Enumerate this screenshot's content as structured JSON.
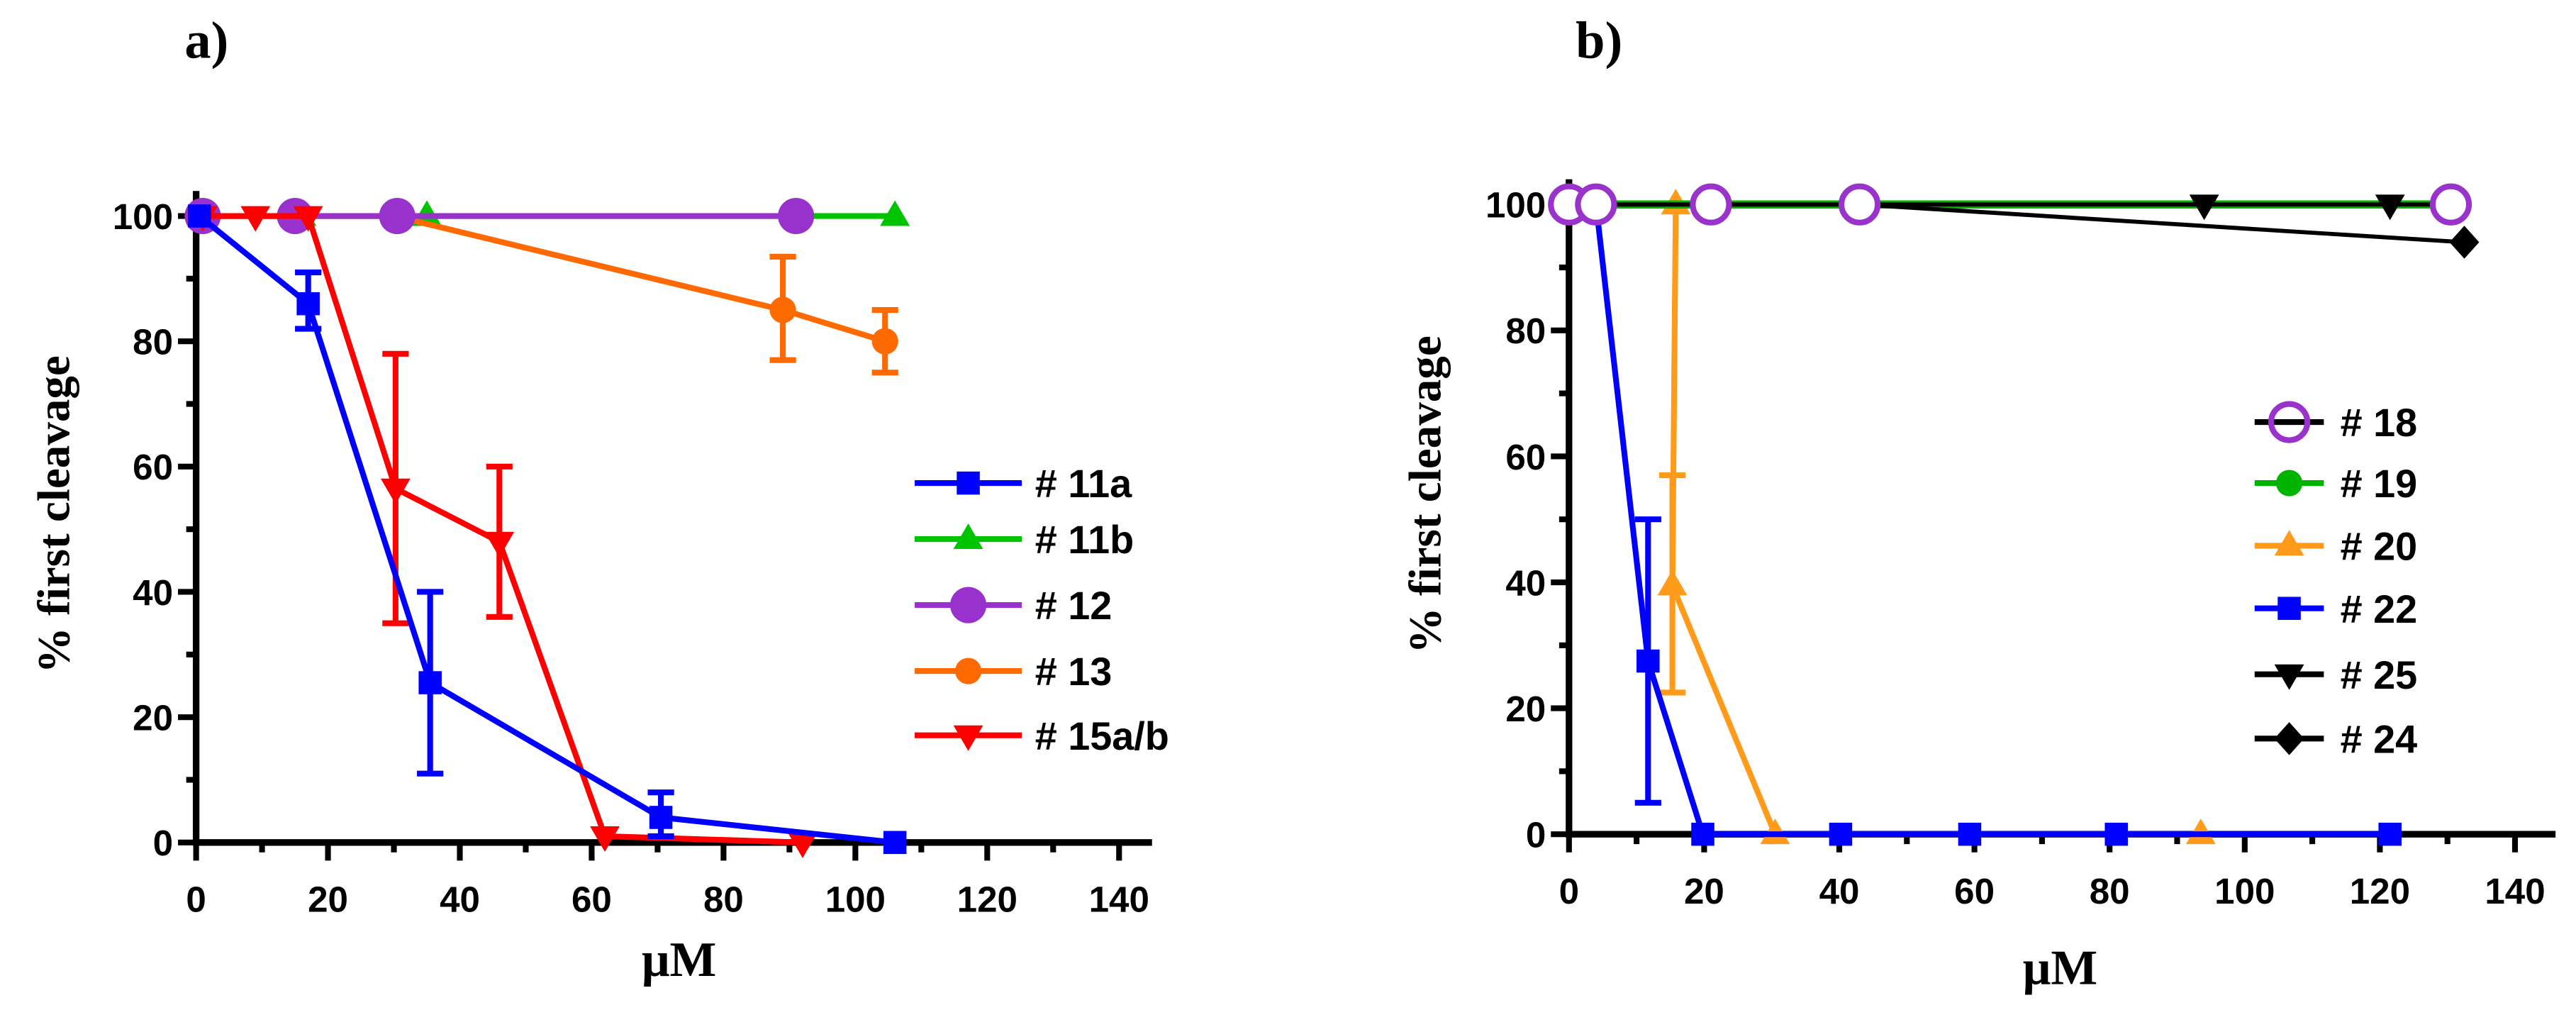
{
  "chart_data": [
    {
      "type": "line",
      "panel_label": "a)",
      "xlabel": "μM",
      "ylabel": "% first cleavage",
      "xlim": [
        0,
        145
      ],
      "ylim": [
        0,
        104
      ],
      "xticks": [
        0,
        20,
        40,
        60,
        80,
        100,
        120,
        140
      ],
      "yticks": [
        0,
        20,
        40,
        60,
        80,
        100
      ],
      "legend_position": "right",
      "series": [
        {
          "name": "# 11a",
          "color": "#0000ff",
          "marker": "square",
          "x": [
            0.5,
            17,
            35.5,
            70.5,
            106
          ],
          "y": [
            100,
            86,
            25.5,
            4,
            0
          ],
          "error_bars": [
            {
              "x": 17,
              "low": 82,
              "high": 91
            },
            {
              "x": 35.5,
              "low": 11,
              "high": 40
            },
            {
              "x": 70.5,
              "low": 1,
              "high": 8
            }
          ]
        },
        {
          "name": "# 11b",
          "color": "#00c400",
          "marker": "triangle-up",
          "x": [
            1,
            16,
            35,
            106
          ],
          "y": [
            100,
            100,
            100,
            100
          ]
        },
        {
          "name": "# 12",
          "color": "#9932cc",
          "marker": "circle-large",
          "x": [
            1,
            15,
            30.5,
            91
          ],
          "y": [
            100,
            100,
            100,
            100
          ]
        },
        {
          "name": "# 13",
          "color": "#ff6a00",
          "marker": "circle",
          "x": [
            1,
            15,
            30,
            89,
            104.5
          ],
          "y": [
            100,
            100,
            100,
            85,
            80
          ],
          "error_bars": [
            {
              "x": 89,
              "low": 77,
              "high": 93.5
            },
            {
              "x": 104.5,
              "low": 75,
              "high": 85
            }
          ]
        },
        {
          "name": "# 15a/b",
          "color": "#ff0000",
          "marker": "triangle-down",
          "x": [
            1,
            9,
            17,
            30.25,
            46,
            62,
            92
          ],
          "y": [
            100,
            100,
            100,
            56.5,
            48,
            1,
            0
          ],
          "error_bars": [
            {
              "x": 30.25,
              "low": 35,
              "high": 78
            },
            {
              "x": 46,
              "low": 36,
              "high": 60
            }
          ]
        }
      ]
    },
    {
      "type": "line",
      "panel_label": "b)",
      "xlabel": "μM",
      "ylabel": "% first cleavage",
      "xlim": [
        0,
        146
      ],
      "ylim": [
        0,
        104
      ],
      "xticks": [
        0,
        20,
        40,
        60,
        80,
        100,
        120,
        140
      ],
      "yticks": [
        0,
        20,
        40,
        60,
        80,
        100
      ],
      "legend_position": "right",
      "series": [
        {
          "name": "# 18",
          "color": "#9933cc",
          "line_color": "#000000",
          "marker": "circle-open",
          "x": [
            0,
            4,
            21,
            43,
            130.5
          ],
          "y": [
            100,
            100,
            100,
            100,
            100
          ]
        },
        {
          "name": "# 19",
          "color": "#00b400",
          "marker": "circle",
          "x": [
            0,
            4,
            21,
            43,
            130.5
          ],
          "y": [
            100,
            100,
            100,
            100,
            100
          ]
        },
        {
          "name": "# 20",
          "color": "#ff9a1a",
          "marker": "triangle-up",
          "x": [
            15.8,
            15.3,
            30.5,
            93.5
          ],
          "y": [
            100,
            39.5,
            0,
            0
          ],
          "error_bars": [
            {
              "x": 15.3,
              "low": 22.5,
              "high": 57
            }
          ]
        },
        {
          "name": "# 22",
          "color": "#0000ff",
          "marker": "square",
          "x": [
            4,
            11.7,
            19.8,
            40.2,
            59.3,
            81,
            121.5
          ],
          "y": [
            100,
            27.5,
            0,
            0,
            0,
            0,
            0
          ],
          "error_bars": [
            {
              "x": 11.7,
              "low": 5,
              "high": 50
            }
          ]
        },
        {
          "name": "# 25",
          "color": "#000000",
          "marker": "triangle-down",
          "x": [
            0,
            2,
            21,
            43,
            94,
            121.5,
            130.5
          ],
          "y": [
            100,
            100,
            100,
            100,
            100,
            100,
            100
          ]
        },
        {
          "name": "# 24",
          "color": "#000000",
          "marker": "diamond",
          "x": [
            0,
            2,
            21,
            43,
            132.5
          ],
          "y": [
            100,
            100,
            100,
            100,
            94
          ]
        }
      ]
    }
  ]
}
